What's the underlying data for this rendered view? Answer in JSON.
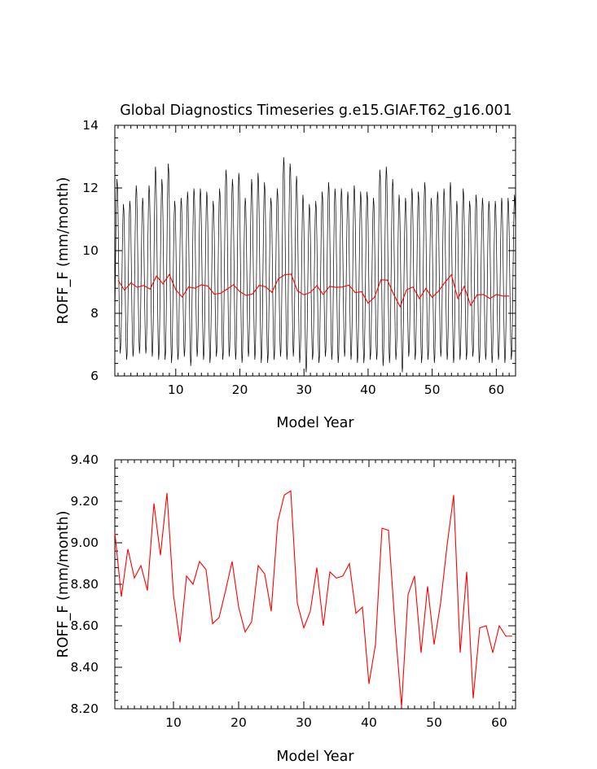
{
  "chart_data": [
    {
      "type": "line",
      "title": "Global Diagnostics Timeseries g.e15.GIAF.T62_g16.001",
      "xlabel": "Model Year",
      "ylabel": "ROFF_F (mm/month)",
      "xlim": [
        0.5,
        63
      ],
      "ylim": [
        6,
        14
      ],
      "xticks": [
        10,
        20,
        30,
        40,
        50,
        60
      ],
      "xtick_labels": [
        "10",
        "20",
        "30",
        "40",
        "50",
        "60"
      ],
      "yticks": [
        6,
        8,
        10,
        12,
        14
      ],
      "ytick_labels": [
        "6",
        "8",
        "10",
        "12",
        "14"
      ],
      "monthly_cycle": {
        "years": 63,
        "samples_per_year": 12,
        "base_mean": 9.0,
        "peaks": [
          12.3,
          11.5,
          11.6,
          12.1,
          11.7,
          12.1,
          12.7,
          12.3,
          12.8,
          11.6,
          11.7,
          11.9,
          12.0,
          12.0,
          11.9,
          11.6,
          12.0,
          12.6,
          12.3,
          12.5,
          11.7,
          12.3,
          12.5,
          12.2,
          11.7,
          12.0,
          13.0,
          12.8,
          12.4,
          11.8,
          11.5,
          11.6,
          11.9,
          12.2,
          12.0,
          12.0,
          11.9,
          12.1,
          11.9,
          11.9,
          11.7,
          12.6,
          12.7,
          12.3,
          11.8,
          11.7,
          12.0,
          11.9,
          12.2,
          11.7,
          11.9,
          12.0,
          12.2,
          11.6,
          12.0,
          11.6,
          11.8,
          11.7,
          11.6,
          11.6,
          11.7,
          11.7,
          11.8
        ],
        "troughs": [
          6.7,
          6.5,
          6.6,
          6.7,
          6.7,
          6.6,
          6.5,
          6.5,
          6.4,
          6.5,
          6.6,
          6.3,
          6.6,
          6.5,
          6.4,
          6.6,
          6.5,
          6.6,
          6.5,
          6.4,
          6.6,
          6.5,
          6.4,
          6.4,
          6.5,
          6.6,
          6.5,
          6.6,
          6.4,
          6.1,
          6.5,
          6.4,
          6.6,
          6.5,
          6.4,
          6.6,
          6.5,
          6.4,
          6.4,
          6.5,
          6.5,
          6.3,
          6.4,
          6.5,
          6.1,
          6.6,
          6.5,
          6.4,
          6.5,
          6.4,
          6.6,
          6.5,
          6.4,
          6.5,
          6.5,
          6.6,
          6.4,
          6.5,
          6.4,
          6.5,
          6.4,
          6.5,
          6.6
        ],
        "color": "#000000"
      },
      "series": [
        {
          "kind": "annual_mean",
          "x": [
            1,
            2,
            3,
            4,
            5,
            6,
            7,
            8,
            9,
            10,
            11,
            12,
            13,
            14,
            15,
            16,
            17,
            18,
            19,
            20,
            21,
            22,
            23,
            24,
            25,
            26,
            27,
            28,
            29,
            30,
            31,
            32,
            33,
            34,
            35,
            36,
            37,
            38,
            39,
            40,
            41,
            42,
            43,
            44,
            45,
            46,
            47,
            48,
            49,
            50,
            51,
            52,
            53,
            54,
            55,
            56,
            57,
            58,
            59,
            60,
            61,
            62
          ],
          "values": [
            9.05,
            8.74,
            8.97,
            8.83,
            8.89,
            8.77,
            9.19,
            8.94,
            9.24,
            8.75,
            8.52,
            8.84,
            8.8,
            8.91,
            8.87,
            8.61,
            8.64,
            8.77,
            8.91,
            8.69,
            8.57,
            8.62,
            8.89,
            8.85,
            8.67,
            9.1,
            9.23,
            9.25,
            8.71,
            8.59,
            8.67,
            8.88,
            8.6,
            8.86,
            8.83,
            8.84,
            8.9,
            8.66,
            8.69,
            8.32,
            8.51,
            9.07,
            9.06,
            8.6,
            8.21,
            8.75,
            8.84,
            8.47,
            8.79,
            8.51,
            8.71,
            8.99,
            9.23,
            8.47,
            8.86,
            8.25,
            8.59,
            8.6,
            8.47,
            8.6,
            8.55,
            8.55
          ],
          "color": "#ff0000"
        }
      ]
    },
    {
      "type": "line",
      "title": "",
      "xlabel": "Model Year",
      "ylabel": "ROFF_F (mm/month)",
      "xlim": [
        1,
        62.5
      ],
      "ylim": [
        8.2,
        9.4
      ],
      "xticks": [
        10,
        20,
        30,
        40,
        50,
        60
      ],
      "xtick_labels": [
        "10",
        "20",
        "30",
        "40",
        "50",
        "60"
      ],
      "yticks": [
        8.2,
        8.4,
        8.6,
        8.8,
        9.0,
        9.2,
        9.4
      ],
      "ytick_labels": [
        "8.20",
        "8.40",
        "8.60",
        "8.80",
        "9.00",
        "9.20",
        "9.40"
      ],
      "series": [
        {
          "kind": "annual_mean",
          "x": [
            1,
            2,
            3,
            4,
            5,
            6,
            7,
            8,
            9,
            10,
            11,
            12,
            13,
            14,
            15,
            16,
            17,
            18,
            19,
            20,
            21,
            22,
            23,
            24,
            25,
            26,
            27,
            28,
            29,
            30,
            31,
            32,
            33,
            34,
            35,
            36,
            37,
            38,
            39,
            40,
            41,
            42,
            43,
            44,
            45,
            46,
            47,
            48,
            49,
            50,
            51,
            52,
            53,
            54,
            55,
            56,
            57,
            58,
            59,
            60,
            61,
            62
          ],
          "values": [
            9.05,
            8.74,
            8.97,
            8.83,
            8.89,
            8.77,
            9.19,
            8.94,
            9.24,
            8.75,
            8.52,
            8.84,
            8.8,
            8.91,
            8.87,
            8.61,
            8.64,
            8.77,
            8.91,
            8.69,
            8.57,
            8.62,
            8.89,
            8.85,
            8.67,
            9.1,
            9.23,
            9.25,
            8.71,
            8.59,
            8.67,
            8.88,
            8.6,
            8.86,
            8.83,
            8.84,
            8.9,
            8.66,
            8.69,
            8.32,
            8.51,
            9.07,
            9.06,
            8.6,
            8.21,
            8.75,
            8.84,
            8.47,
            8.79,
            8.51,
            8.71,
            8.99,
            9.23,
            8.47,
            8.86,
            8.25,
            8.59,
            8.6,
            8.47,
            8.6,
            8.55,
            8.55
          ],
          "color": "#ff0000"
        }
      ]
    }
  ]
}
